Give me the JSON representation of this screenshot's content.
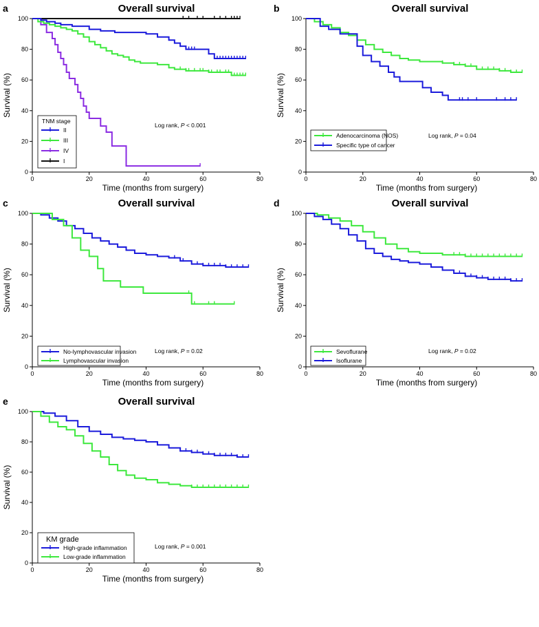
{
  "chart_data": [
    {
      "type": "line",
      "panel": "a",
      "title": "Overall survival",
      "xlabel": "Time (months from surgery)",
      "ylabel": "Survival  (%)",
      "xlim": [
        0,
        80
      ],
      "ylim": [
        0,
        100
      ],
      "xticks": [
        "0",
        "20",
        "40",
        "60",
        "80"
      ],
      "yticks": [
        "0",
        "20",
        "40",
        "60",
        "80",
        "100"
      ],
      "annotation": {
        "prefix": "Log rank, ",
        "p": "P",
        "rest": " < 0.001"
      },
      "legend": {
        "title": "TNM stage",
        "position": "bottom-left"
      },
      "series": [
        {
          "name": "II",
          "color": "#1a1adb",
          "x": [
            0,
            3,
            5,
            8,
            10,
            14,
            20,
            24,
            29,
            35,
            40,
            44,
            48,
            50,
            52,
            54,
            56,
            62,
            64,
            75
          ],
          "y": [
            100,
            99,
            98,
            97,
            96,
            95,
            93,
            92,
            91,
            91,
            90,
            88,
            86,
            84,
            82,
            80,
            80,
            77,
            74,
            74
          ],
          "censor_x": [
            52,
            55,
            56,
            57,
            64,
            65,
            66,
            67,
            68,
            69,
            70,
            71,
            72,
            73,
            74,
            75
          ]
        },
        {
          "name": "III",
          "color": "#3ce83c",
          "x": [
            0,
            2,
            4,
            6,
            8,
            10,
            12,
            14,
            16,
            18,
            20,
            22,
            24,
            26,
            28,
            30,
            32,
            34,
            36,
            38,
            40,
            44,
            48,
            50,
            54,
            58,
            62,
            66,
            70,
            75
          ],
          "y": [
            100,
            98,
            97,
            96,
            95,
            94,
            93,
            92,
            90,
            88,
            85,
            83,
            81,
            79,
            77,
            76,
            75,
            73,
            72,
            71,
            71,
            70,
            68,
            67,
            66,
            66,
            65,
            65,
            63,
            63
          ],
          "censor_x": [
            52,
            54,
            55,
            57,
            59,
            60,
            62,
            63,
            65,
            66,
            68,
            69,
            70,
            71,
            72,
            73,
            74,
            75
          ]
        },
        {
          "name": "IV",
          "color": "#8a2be2",
          "x": [
            0,
            3,
            4,
            5,
            7,
            8,
            9,
            10,
            11,
            12,
            13,
            14,
            15,
            16,
            17,
            18,
            19,
            20,
            22,
            24,
            26,
            28,
            33,
            59
          ],
          "y": [
            100,
            96,
            96,
            91,
            87,
            83,
            78,
            74,
            70,
            65,
            61,
            61,
            57,
            52,
            48,
            43,
            39,
            35,
            35,
            30,
            26,
            17,
            4,
            4
          ],
          "censor_x": [
            59
          ]
        },
        {
          "name": "I",
          "color": "#111111",
          "x": [
            0,
            73
          ],
          "y": [
            100,
            100
          ],
          "censor_x": [
            53,
            55,
            58,
            60,
            64,
            66,
            68,
            70,
            71,
            72,
            73
          ]
        }
      ]
    },
    {
      "type": "line",
      "panel": "b",
      "title": "Overall survival",
      "xlabel": "Time (months from surgery)",
      "ylabel": "Survival  (%)",
      "xlim": [
        0,
        80
      ],
      "ylim": [
        0,
        100
      ],
      "xticks": [
        "0",
        "20",
        "40",
        "60",
        "80"
      ],
      "yticks": [
        "0",
        "20",
        "40",
        "60",
        "80",
        "100"
      ],
      "annotation": {
        "prefix": "Log rank, ",
        "p": "P",
        "rest": " = 0.04"
      },
      "legend": {
        "title": "",
        "position": "bottom-left"
      },
      "series": [
        {
          "name": "Adenocarcinoma (NOS)",
          "color": "#3ce83c",
          "x": [
            0,
            3,
            6,
            9,
            12,
            15,
            18,
            21,
            24,
            27,
            30,
            33,
            36,
            40,
            44,
            48,
            52,
            56,
            60,
            64,
            68,
            72,
            76
          ],
          "y": [
            100,
            98,
            96,
            94,
            91,
            89,
            86,
            83,
            80,
            78,
            76,
            74,
            73,
            72,
            72,
            71,
            70,
            69,
            67,
            67,
            66,
            65,
            65
          ],
          "censor_x": [
            48,
            52,
            54,
            56,
            58,
            60,
            62,
            64,
            66,
            68,
            70,
            72,
            74,
            76
          ]
        },
        {
          "name": "Specific type of cancer",
          "color": "#1a1adb",
          "x": [
            0,
            5,
            8,
            12,
            14,
            16,
            18,
            20,
            23,
            26,
            29,
            31,
            33,
            36,
            41,
            44,
            48,
            50,
            74
          ],
          "y": [
            100,
            95,
            93,
            90,
            90,
            90,
            82,
            76,
            72,
            69,
            65,
            62,
            59,
            59,
            55,
            52,
            50,
            47,
            47
          ],
          "censor_x": [
            54,
            55,
            57,
            60,
            67,
            70,
            72,
            74
          ]
        }
      ]
    },
    {
      "type": "line",
      "panel": "c",
      "title": "Overall survival",
      "xlabel": "Time (months from surgery)",
      "ylabel": "Survival  (%)",
      "xlim": [
        0,
        80
      ],
      "ylim": [
        0,
        100
      ],
      "xticks": [
        "0",
        "20",
        "40",
        "60",
        "80"
      ],
      "yticks": [
        "0",
        "20",
        "40",
        "60",
        "80",
        "100"
      ],
      "annotation": {
        "prefix": "Log rank, ",
        "p": "P",
        "rest": " = 0.02"
      },
      "legend": {
        "title": "",
        "position": "bottom-left"
      },
      "series": [
        {
          "name": "No-lymphovascular invasion",
          "color": "#1a1adb",
          "x": [
            0,
            3,
            6,
            9,
            12,
            15,
            18,
            21,
            24,
            27,
            30,
            33,
            36,
            40,
            44,
            48,
            52,
            56,
            60,
            64,
            68,
            72,
            76
          ],
          "y": [
            100,
            99,
            97,
            95,
            92,
            90,
            87,
            84,
            82,
            80,
            78,
            76,
            74,
            73,
            72,
            71,
            69,
            67,
            66,
            66,
            65,
            65,
            65
          ],
          "censor_x": [
            50,
            53,
            56,
            58,
            60,
            62,
            64,
            66,
            68,
            70,
            72,
            74,
            76
          ]
        },
        {
          "name": "Lymphovascular invasion",
          "color": "#3ce83c",
          "x": [
            0,
            7,
            11,
            14,
            17,
            20,
            23,
            25,
            31,
            39,
            56,
            71
          ],
          "y": [
            100,
            96,
            92,
            84,
            76,
            72,
            64,
            56,
            52,
            48,
            41,
            41
          ],
          "censor_x": [
            55,
            57,
            62,
            64,
            71
          ]
        }
      ]
    },
    {
      "type": "line",
      "panel": "d",
      "title": "Overall survival",
      "xlabel": "Time (months from surgery)",
      "ylabel": "Survival  (%)",
      "xlim": [
        0,
        80
      ],
      "ylim": [
        0,
        100
      ],
      "xticks": [
        "0",
        "20",
        "40",
        "60",
        "80"
      ],
      "yticks": [
        "0",
        "20",
        "40",
        "60",
        "80",
        "100"
      ],
      "annotation": {
        "prefix": "Log rank, ",
        "p": "P",
        "rest": " = 0.02"
      },
      "legend": {
        "title": "",
        "position": "bottom-left"
      },
      "series": [
        {
          "name": "Sevoflurane",
          "color": "#3ce83c",
          "x": [
            0,
            4,
            8,
            12,
            16,
            20,
            24,
            28,
            32,
            36,
            40,
            44,
            48,
            52,
            56,
            60,
            64,
            68,
            72,
            76
          ],
          "y": [
            100,
            99,
            97,
            95,
            92,
            88,
            84,
            80,
            77,
            75,
            74,
            74,
            73,
            73,
            72,
            72,
            72,
            72,
            72,
            72
          ],
          "censor_x": [
            52,
            54,
            56,
            58,
            60,
            62,
            64,
            66,
            68,
            70,
            72,
            74,
            76
          ]
        },
        {
          "name": "Isoflurane",
          "color": "#1a1adb",
          "x": [
            0,
            3,
            6,
            9,
            12,
            15,
            18,
            21,
            24,
            27,
            30,
            33,
            36,
            40,
            44,
            48,
            52,
            56,
            60,
            64,
            68,
            72,
            76
          ],
          "y": [
            100,
            98,
            96,
            93,
            90,
            86,
            82,
            77,
            74,
            72,
            70,
            69,
            68,
            67,
            65,
            63,
            61,
            59,
            58,
            57,
            57,
            56,
            56
          ],
          "censor_x": [
            48,
            52,
            54,
            56,
            58,
            60,
            62,
            64,
            66,
            68,
            70,
            72,
            74,
            76
          ]
        }
      ]
    },
    {
      "type": "line",
      "panel": "e",
      "title": "Overall survival",
      "xlabel": "Time (months from surgery)",
      "ylabel": "Survival  (%)",
      "xlim": [
        0,
        80
      ],
      "ylim": [
        0,
        100
      ],
      "xticks": [
        "0",
        "20",
        "40",
        "60",
        "80"
      ],
      "yticks": [
        "0",
        "20",
        "40",
        "60",
        "80",
        "100"
      ],
      "annotation": {
        "prefix": "Log rank, ",
        "p": "P",
        "rest": " = 0.001"
      },
      "legend": {
        "title": "KM  grade",
        "position": "bottom-left"
      },
      "series": [
        {
          "name": "High-grade inflammation",
          "color": "#1a1adb",
          "x": [
            0,
            4,
            8,
            12,
            16,
            20,
            24,
            28,
            32,
            36,
            40,
            44,
            48,
            52,
            56,
            60,
            64,
            68,
            72,
            76
          ],
          "y": [
            100,
            99,
            97,
            94,
            90,
            87,
            85,
            83,
            82,
            81,
            80,
            78,
            76,
            74,
            73,
            72,
            71,
            71,
            70,
            70
          ],
          "censor_x": [
            52,
            54,
            56,
            58,
            60,
            62,
            64,
            66,
            68,
            70,
            72,
            74,
            76
          ]
        },
        {
          "name": "Low-grade inflammation",
          "color": "#3ce83c",
          "x": [
            0,
            3,
            6,
            9,
            12,
            15,
            18,
            21,
            24,
            27,
            30,
            33,
            36,
            40,
            44,
            48,
            52,
            56,
            60,
            64,
            68,
            72,
            76
          ],
          "y": [
            100,
            97,
            93,
            90,
            88,
            84,
            79,
            74,
            70,
            65,
            61,
            58,
            56,
            55,
            53,
            52,
            51,
            50,
            50,
            50,
            50,
            50,
            50
          ],
          "censor_x": [
            56,
            58,
            60,
            62,
            64,
            66,
            68,
            70,
            72,
            74,
            76
          ]
        }
      ]
    }
  ]
}
